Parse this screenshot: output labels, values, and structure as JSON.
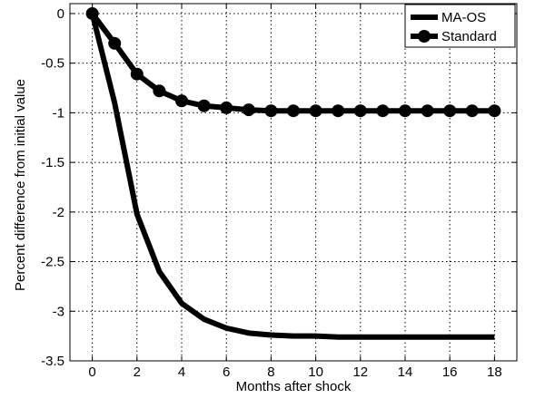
{
  "chart_data": {
    "type": "line",
    "xlabel": "Months after shock",
    "ylabel": "Percent difference from initial value",
    "xlim": [
      -1,
      19
    ],
    "ylim": [
      -3.5,
      0.1
    ],
    "xticks": [
      "0",
      "2",
      "4",
      "6",
      "8",
      "10",
      "12",
      "14",
      "16",
      "18"
    ],
    "xtick_values": [
      0,
      2,
      4,
      6,
      8,
      10,
      12,
      14,
      16,
      18
    ],
    "yticks": [
      "0",
      "-0.5",
      "-1",
      "-1.5",
      "-2",
      "-2.5",
      "-3",
      "-3.5"
    ],
    "ytick_values": [
      0,
      -0.5,
      -1,
      -1.5,
      -2,
      -2.5,
      -3,
      -3.5
    ],
    "grid": true,
    "legend_position": "top-right",
    "x": [
      0,
      1,
      2,
      3,
      4,
      5,
      6,
      7,
      8,
      9,
      10,
      11,
      12,
      13,
      14,
      15,
      16,
      17,
      18
    ],
    "series": [
      {
        "name": "MA-OS",
        "color": "#000000",
        "marker": "none",
        "values": [
          0,
          -0.9,
          -2.02,
          -2.6,
          -2.92,
          -3.08,
          -3.17,
          -3.22,
          -3.24,
          -3.25,
          -3.25,
          -3.26,
          -3.26,
          -3.26,
          -3.26,
          -3.26,
          -3.26,
          -3.26,
          -3.26
        ]
      },
      {
        "name": "Standard",
        "color": "#000000",
        "marker": "circle",
        "values": [
          0,
          -0.3,
          -0.61,
          -0.78,
          -0.88,
          -0.93,
          -0.95,
          -0.97,
          -0.98,
          -0.98,
          -0.98,
          -0.98,
          -0.98,
          -0.98,
          -0.98,
          -0.98,
          -0.98,
          -0.98,
          -0.98
        ]
      }
    ]
  }
}
